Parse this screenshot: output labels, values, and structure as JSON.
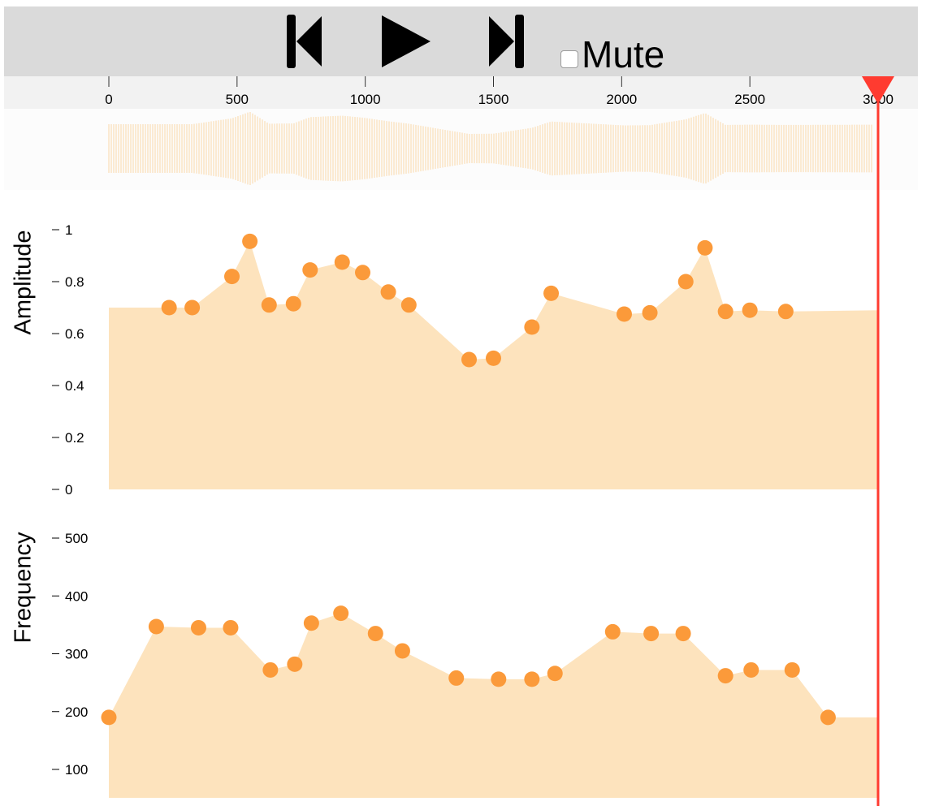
{
  "toolbar": {
    "buttons": [
      {
        "name": "skip-back-button",
        "icon": "skip-back-icon"
      },
      {
        "name": "play-button",
        "icon": "play-icon"
      },
      {
        "name": "skip-forward-button",
        "icon": "skip-forward-icon"
      }
    ],
    "mute_label": "Mute",
    "mute_checked": false
  },
  "timeline": {
    "ticks": [
      0,
      500,
      1000,
      1500,
      2000,
      2500,
      3000
    ],
    "range": [
      0,
      3000
    ],
    "playhead": 3000,
    "playhead_color": "#ff3b30"
  },
  "colors": {
    "fill": "#fde3bd",
    "point": "#fb9a3a",
    "waveform": "#fad8a8",
    "toolbar": "#dadada"
  },
  "chart_data": [
    {
      "type": "area",
      "ylabel": "Amplitude",
      "ylim": [
        0,
        1
      ],
      "yticks": [
        "0",
        "0.2",
        "0.4",
        "0.6",
        "0.8",
        "1"
      ],
      "xlim": [
        0,
        3000
      ],
      "points": [
        {
          "x": 0,
          "y": 0.7,
          "marker": false
        },
        {
          "x": 235,
          "y": 0.7
        },
        {
          "x": 325,
          "y": 0.7
        },
        {
          "x": 480,
          "y": 0.82
        },
        {
          "x": 550,
          "y": 0.955
        },
        {
          "x": 625,
          "y": 0.71
        },
        {
          "x": 720,
          "y": 0.715
        },
        {
          "x": 785,
          "y": 0.845
        },
        {
          "x": 910,
          "y": 0.875
        },
        {
          "x": 990,
          "y": 0.835
        },
        {
          "x": 1090,
          "y": 0.76
        },
        {
          "x": 1170,
          "y": 0.71
        },
        {
          "x": 1405,
          "y": 0.5
        },
        {
          "x": 1500,
          "y": 0.505
        },
        {
          "x": 1650,
          "y": 0.625
        },
        {
          "x": 1725,
          "y": 0.755
        },
        {
          "x": 2010,
          "y": 0.675
        },
        {
          "x": 2110,
          "y": 0.68
        },
        {
          "x": 2250,
          "y": 0.8
        },
        {
          "x": 2325,
          "y": 0.93
        },
        {
          "x": 2405,
          "y": 0.685
        },
        {
          "x": 2500,
          "y": 0.69
        },
        {
          "x": 2640,
          "y": 0.685
        },
        {
          "x": 3000,
          "y": 0.69,
          "marker": false
        }
      ]
    },
    {
      "type": "area",
      "ylabel": "Frequency",
      "ylim": [
        50,
        550
      ],
      "yticks": [
        "100",
        "200",
        "300",
        "400",
        "500"
      ],
      "xlim": [
        0,
        3000
      ],
      "points": [
        {
          "x": 0,
          "y": 190
        },
        {
          "x": 185,
          "y": 347
        },
        {
          "x": 350,
          "y": 345
        },
        {
          "x": 475,
          "y": 345
        },
        {
          "x": 630,
          "y": 272
        },
        {
          "x": 725,
          "y": 282
        },
        {
          "x": 790,
          "y": 353
        },
        {
          "x": 905,
          "y": 370
        },
        {
          "x": 1040,
          "y": 335
        },
        {
          "x": 1145,
          "y": 305
        },
        {
          "x": 1355,
          "y": 258
        },
        {
          "x": 1520,
          "y": 256
        },
        {
          "x": 1650,
          "y": 256
        },
        {
          "x": 1740,
          "y": 266
        },
        {
          "x": 1965,
          "y": 338
        },
        {
          "x": 2115,
          "y": 335
        },
        {
          "x": 2240,
          "y": 335
        },
        {
          "x": 2405,
          "y": 262
        },
        {
          "x": 2505,
          "y": 272
        },
        {
          "x": 2665,
          "y": 272
        },
        {
          "x": 2805,
          "y": 190
        },
        {
          "x": 3000,
          "y": 190,
          "marker": false
        }
      ]
    }
  ]
}
